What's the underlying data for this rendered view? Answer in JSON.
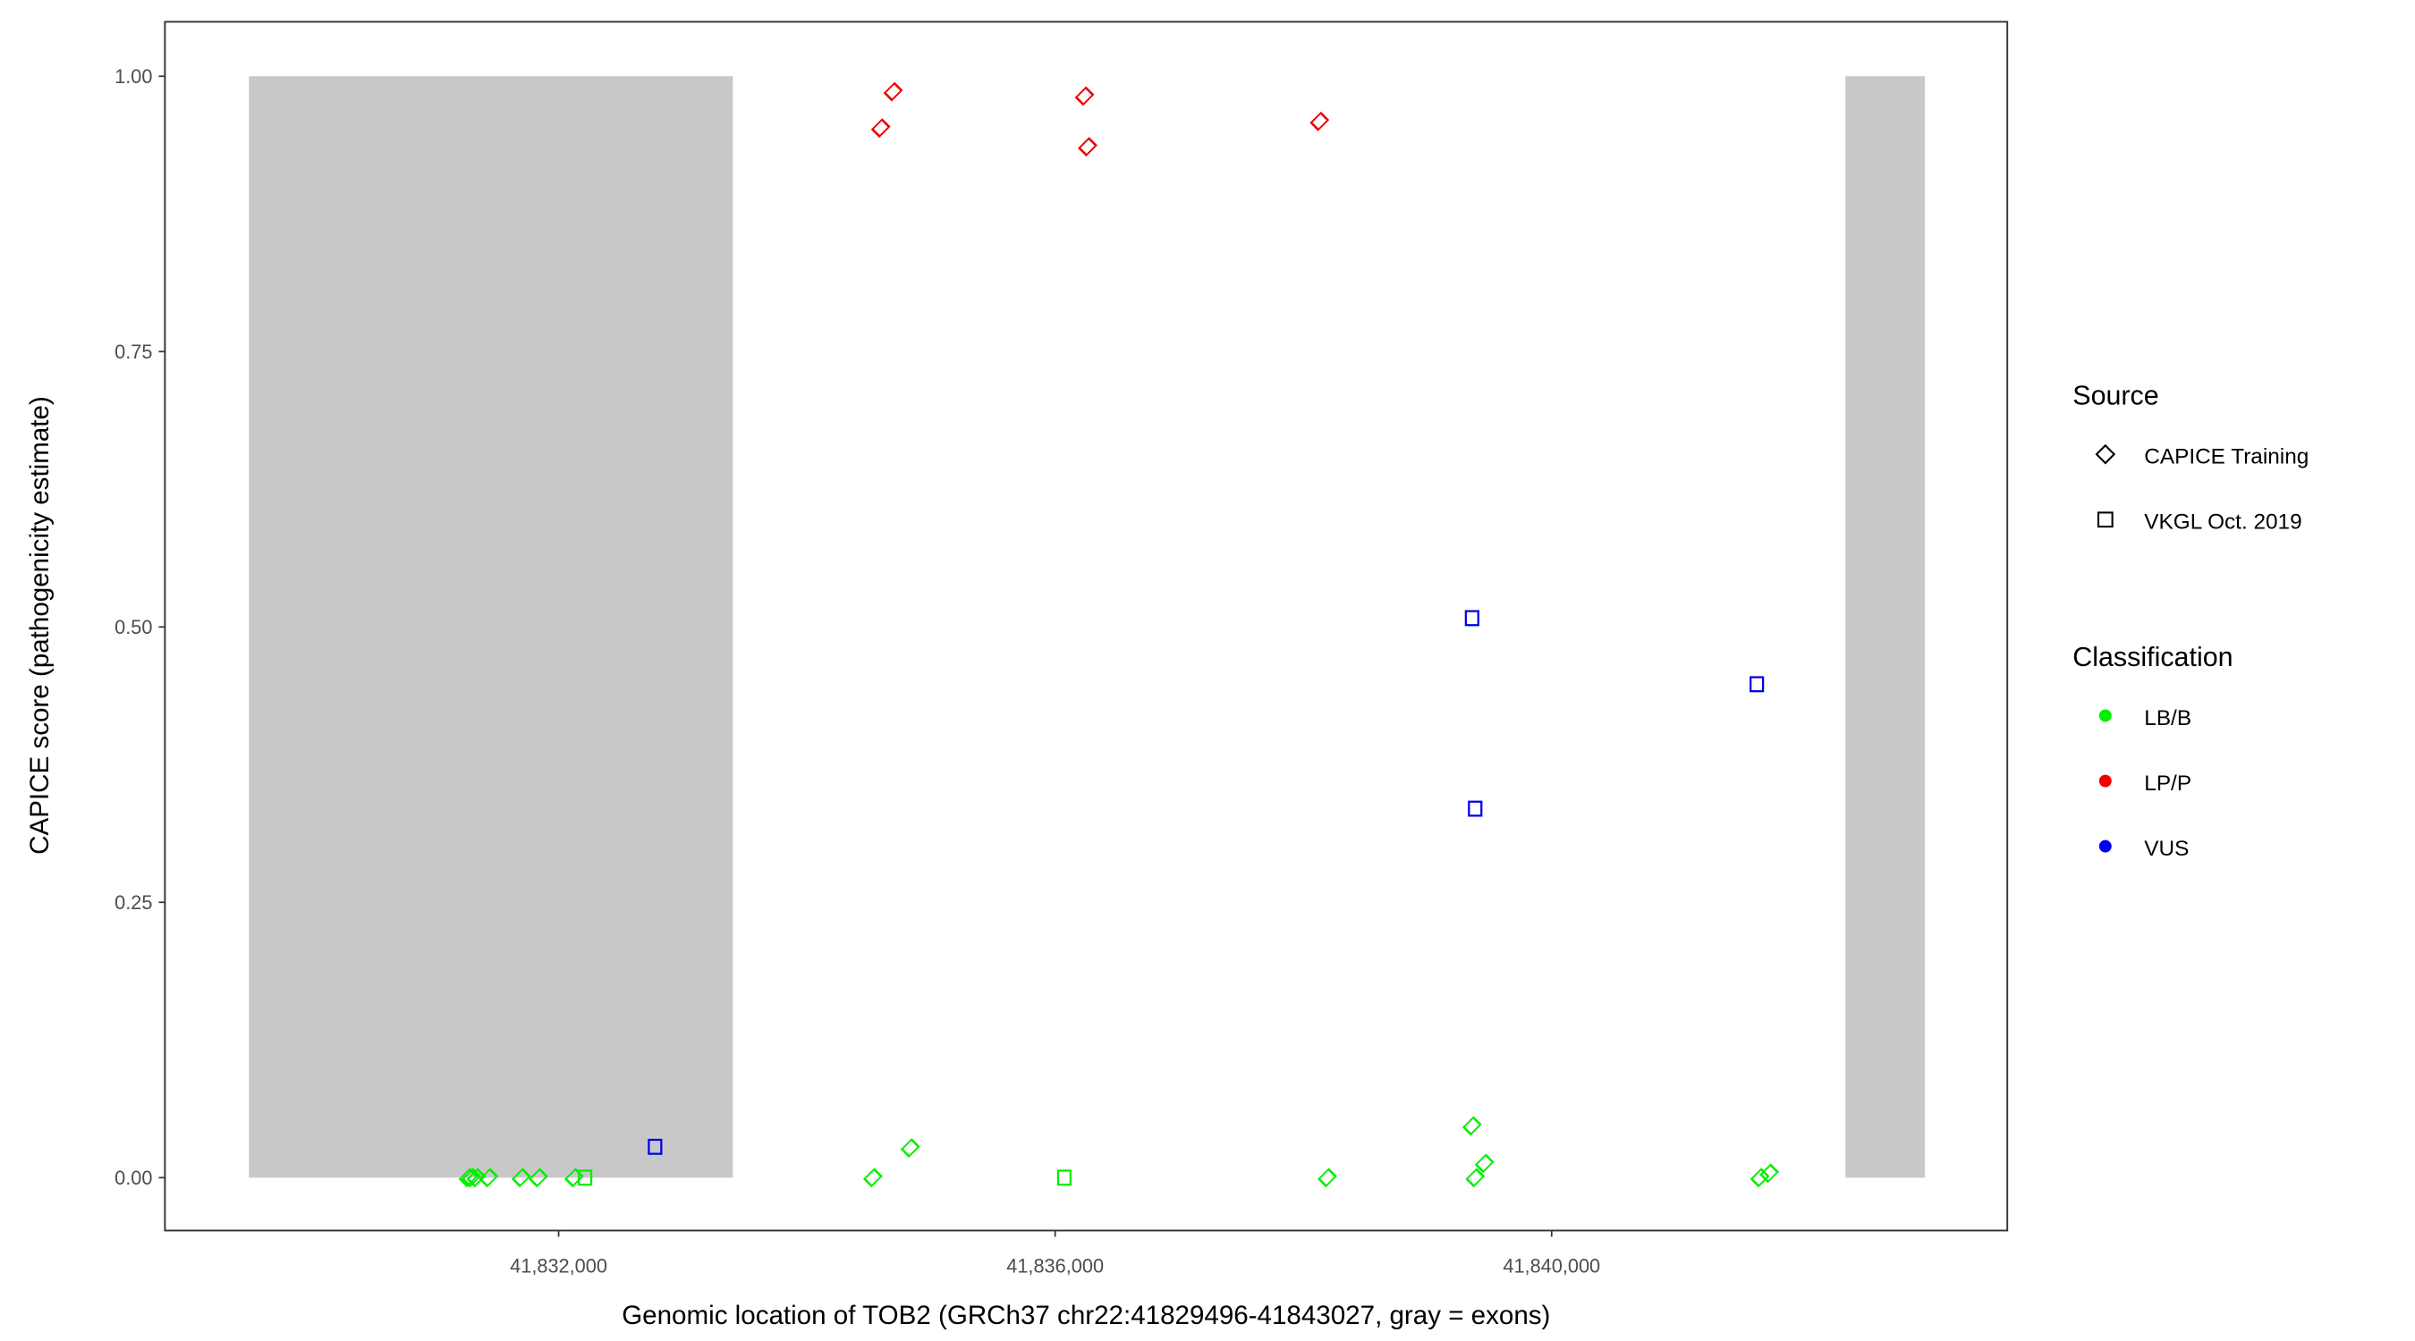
{
  "chart_data": {
    "type": "scatter",
    "xlabel": "Genomic location of TOB2 (GRCh37 chr22:41829496-41843027, gray = exons)",
    "ylabel": "CAPICE score (pathogenicity estimate)",
    "xlim": [
      41828400,
      43243200
    ],
    "xlim_note": "",
    "ylim": [
      -0.047,
      1.048
    ],
    "grid": false,
    "x_ticks": [
      {
        "value": 41832000,
        "label": "41,832,000"
      },
      {
        "value": 41836000,
        "label": "41,836,000"
      },
      {
        "value": 41840000,
        "label": "41,840,000"
      }
    ],
    "y_ticks": [
      {
        "value": 0,
        "label": "0.00"
      },
      {
        "value": 0.25,
        "label": "0.25"
      },
      {
        "value": 0.5,
        "label": "0.50"
      },
      {
        "value": 0.75,
        "label": "0.75"
      },
      {
        "value": 1,
        "label": "1.00"
      }
    ],
    "exons": [
      [
        41829505,
        41833404
      ],
      [
        41842367,
        41843007
      ]
    ],
    "exon_color": "#c8c8c8",
    "legend_position": "right",
    "legend": {
      "source_title": "Source",
      "sources": [
        {
          "name": "CAPICE Training",
          "shape": "diamond"
        },
        {
          "name": "VKGL Oct. 2019",
          "shape": "square"
        }
      ],
      "class_title": "Classification",
      "classes": [
        {
          "name": "LB/B",
          "color": "#00ee00"
        },
        {
          "name": "LP/P",
          "color": "#ee0000"
        },
        {
          "name": "VUS",
          "color": "#0000ee"
        }
      ]
    },
    "points": [
      {
        "x": 41831273,
        "y": 0,
        "source": "CAPICE Training",
        "class": "LB/B"
      },
      {
        "x": 41831298,
        "y": 0,
        "source": "CAPICE Training",
        "class": "LB/B"
      },
      {
        "x": 41831336,
        "y": 0,
        "source": "CAPICE Training",
        "class": "LB/B"
      },
      {
        "x": 41831436,
        "y": 0,
        "source": "CAPICE Training",
        "class": "LB/B"
      },
      {
        "x": 41831699,
        "y": 0,
        "source": "CAPICE Training",
        "class": "LB/B"
      },
      {
        "x": 41831837,
        "y": 0,
        "source": "CAPICE Training",
        "class": "LB/B"
      },
      {
        "x": 41832125,
        "y": 0,
        "source": "CAPICE Training",
        "class": "LB/B"
      },
      {
        "x": 41832213,
        "y": 0,
        "source": "VKGL Oct. 2019",
        "class": "LB/B"
      },
      {
        "x": 41832777,
        "y": 0.028,
        "source": "VKGL Oct. 2019",
        "class": "VUS"
      },
      {
        "x": 41834532,
        "y": 0,
        "source": "CAPICE Training",
        "class": "LB/B"
      },
      {
        "x": 41834833,
        "y": 0.027,
        "source": "CAPICE Training",
        "class": "LB/B"
      },
      {
        "x": 41836074,
        "y": 0,
        "source": "VKGL Oct. 2019",
        "class": "LB/B"
      },
      {
        "x": 41838193,
        "y": 0,
        "source": "CAPICE Training",
        "class": "LB/B"
      },
      {
        "x": 41839359,
        "y": 0.047,
        "source": "CAPICE Training",
        "class": "LB/B"
      },
      {
        "x": 41839384,
        "y": 0,
        "source": "CAPICE Training",
        "class": "LB/B"
      },
      {
        "x": 41839459,
        "y": 0.013,
        "source": "CAPICE Training",
        "class": "LB/B"
      },
      {
        "x": 41841678,
        "y": 0,
        "source": "CAPICE Training",
        "class": "LB/B"
      },
      {
        "x": 41841753,
        "y": 0.004,
        "source": "CAPICE Training",
        "class": "LB/B"
      },
      {
        "x": 41834595,
        "y": 0.953,
        "source": "CAPICE Training",
        "class": "LP/P"
      },
      {
        "x": 41834695,
        "y": 0.986,
        "source": "CAPICE Training",
        "class": "LP/P"
      },
      {
        "x": 41836237,
        "y": 0.982,
        "source": "CAPICE Training",
        "class": "LP/P"
      },
      {
        "x": 41836262,
        "y": 0.936,
        "source": "CAPICE Training",
        "class": "LP/P"
      },
      {
        "x": 41838130,
        "y": 0.959,
        "source": "CAPICE Training",
        "class": "LP/P"
      },
      {
        "x": 41839359,
        "y": 0.508,
        "source": "VKGL Oct. 2019",
        "class": "VUS"
      },
      {
        "x": 41839384,
        "y": 0.335,
        "source": "VKGL Oct. 2019",
        "class": "VUS"
      },
      {
        "x": 41841653,
        "y": 0.448,
        "source": "VKGL Oct. 2019",
        "class": "VUS"
      }
    ]
  }
}
